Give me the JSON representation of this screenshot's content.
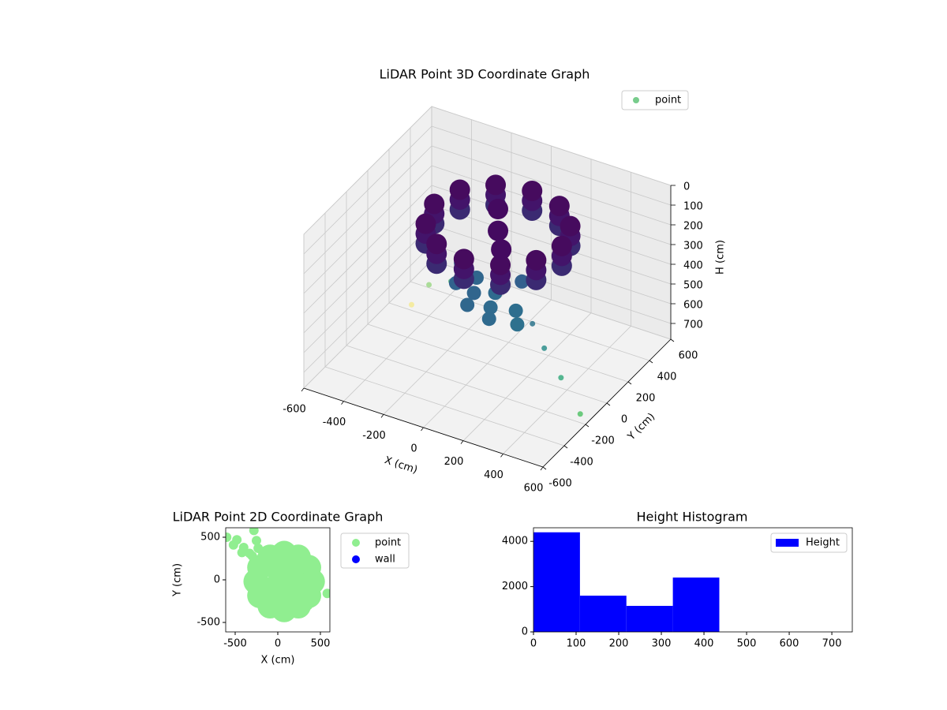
{
  "chart_data": [
    {
      "type": "scatter3d",
      "title": "LiDAR Point 3D Coordinate Graph",
      "xlabel": "X (cm)",
      "ylabel": "Y (cm)",
      "zlabel": "H (cm)",
      "xlim": [
        -600,
        600
      ],
      "ylim": [
        -600,
        600
      ],
      "zlim": [
        0,
        780
      ],
      "z_inverted": true,
      "xticks": [
        -600,
        -400,
        -200,
        0,
        200,
        400,
        600
      ],
      "yticks": [
        -600,
        -400,
        -200,
        0,
        200,
        400,
        600
      ],
      "zticks": [
        0,
        100,
        200,
        300,
        400,
        500,
        600,
        700
      ],
      "grid": true,
      "legend": "upper right",
      "series": [
        {
          "name": "point",
          "x": [
            -250,
            -150,
            -300,
            -250,
            600,
            450,
            350,
            280,
            120,
            0,
            150,
            60,
            250,
            -50,
            200,
            300,
            100,
            -100,
            180,
            40,
            395,
            352,
            235,
            75,
            -85,
            -202,
            -245,
            -202,
            -85,
            75,
            235,
            352,
            395,
            352,
            235,
            75,
            -85,
            -202,
            -245,
            -202,
            -85,
            75,
            235,
            352,
            395,
            352,
            235,
            75,
            -85,
            -202,
            -245,
            -202,
            -85,
            75,
            235,
            352,
            75,
            0,
            150
          ],
          "y": [
            20,
            -60,
            -150,
            -80,
            -250,
            -150,
            -120,
            -100,
            -150,
            -100,
            -250,
            -300,
            -200,
            -200,
            -50,
            -280,
            -50,
            -60,
            -320,
            -200,
            -40,
            120,
            237,
            280,
            237,
            120,
            -40,
            -200,
            -317,
            -360,
            -317,
            -200,
            -40,
            120,
            237,
            280,
            237,
            120,
            -40,
            -200,
            -317,
            -360,
            -317,
            -200,
            -40,
            120,
            237,
            280,
            237,
            120,
            -40,
            -200,
            -317,
            -360,
            -317,
            -200,
            -40,
            100,
            -150
          ],
          "z": [
            360,
            380,
            500,
            420,
            700,
            620,
            520,
            430,
            300,
            290,
            310,
            300,
            320,
            280,
            270,
            330,
            260,
            270,
            320,
            300,
            130,
            130,
            130,
            130,
            130,
            130,
            130,
            130,
            130,
            130,
            130,
            130,
            80,
            80,
            80,
            80,
            80,
            80,
            80,
            80,
            80,
            80,
            80,
            80,
            30,
            30,
            30,
            30,
            30,
            30,
            30,
            30,
            30,
            30,
            30,
            30,
            60,
            50,
            70
          ],
          "colors": [
            "#78cc8c",
            "#5cb87d",
            "#f5ea94",
            "#9fd88a",
            "#55c36a",
            "#3aab80",
            "#2e8f8c",
            "#2d748c",
            "#2f6b8e",
            "#30668d",
            "#2f6b8e",
            "#30678d",
            "#2e6e8e",
            "#31628d",
            "#33608d",
            "#2e718e",
            "#345e8d",
            "#325f8d",
            "#2f6a8e",
            "#31658d",
            "#3b2a72",
            "#3b2a72",
            "#3b2a72",
            "#3b2a72",
            "#3b2a72",
            "#3b2a72",
            "#3b2a72",
            "#3b2a72",
            "#3b2a72",
            "#3b2a72",
            "#3b2a72",
            "#3b2a72",
            "#43146a",
            "#43146a",
            "#43146a",
            "#43146a",
            "#43146a",
            "#43146a",
            "#43146a",
            "#43146a",
            "#43146a",
            "#43146a",
            "#43146a",
            "#43146a",
            "#460b5e",
            "#460b5e",
            "#460b5e",
            "#460b5e",
            "#460b5e",
            "#460b5e",
            "#460b5e",
            "#460b5e",
            "#460b5e",
            "#460b5e",
            "#460b5e",
            "#460b5e",
            "#440a60",
            "#440a60",
            "#440a60"
          ]
        }
      ]
    },
    {
      "type": "scatter",
      "title": "LiDAR Point 2D Coordinate Graph",
      "xlabel": "X (cm)",
      "ylabel": "Y (cm)",
      "xlim": [
        -611,
        611
      ],
      "ylim": [
        -611,
        611
      ],
      "xticks": [
        -500,
        0,
        500
      ],
      "yticks": [
        -500,
        0,
        500
      ],
      "legend": "outside right",
      "series": [
        {
          "name": "point",
          "color": "#90ee90",
          "x": [
            -600,
            -480,
            -520,
            -400,
            -420,
            -300,
            -330,
            -250,
            -230,
            -280,
            400,
            580,
            405,
            361,
            240,
            75,
            -90,
            -211,
            -255,
            -211,
            -90,
            75,
            240,
            361,
            75,
            0,
            150,
            200,
            -50,
            250,
            100,
            -100,
            300,
            20,
            180,
            50
          ],
          "y": [
            500,
            470,
            410,
            380,
            320,
            280,
            310,
            460,
            370,
            580,
            -120,
            -160,
            -20,
            145,
            266,
            310,
            266,
            145,
            -20,
            -185,
            -306,
            -350,
            -306,
            -185,
            -20,
            100,
            -150,
            150,
            -200,
            -50,
            200,
            -100,
            -250,
            -280,
            -300,
            0
          ]
        },
        {
          "name": "wall",
          "color": "#0000ff",
          "x": [],
          "y": []
        }
      ]
    },
    {
      "type": "histogram",
      "title": "Height Histogram",
      "bins": [
        0,
        109,
        218,
        327,
        436
      ],
      "xlim": [
        0,
        748
      ],
      "ylim": [
        0,
        4600
      ],
      "xticks": [
        0,
        100,
        200,
        300,
        400,
        500,
        600,
        700
      ],
      "yticks": [
        0,
        2000,
        4000
      ],
      "legend": "upper right",
      "series": [
        {
          "name": "Height",
          "color": "#0000ff",
          "values": [
            4400,
            1600,
            1150,
            2400
          ]
        }
      ]
    }
  ]
}
